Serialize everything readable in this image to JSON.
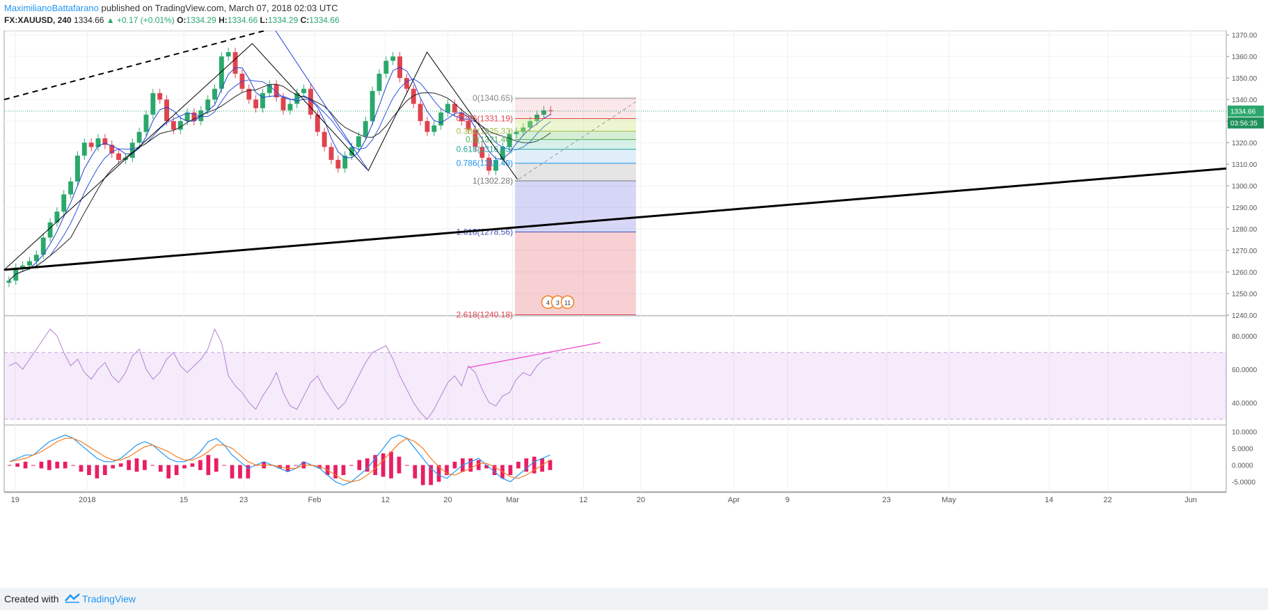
{
  "header": {
    "author": "MaximilianoBattafarano",
    "published": "published on TradingView.com, March 07, 2018 02:03 UTC",
    "symbol": "FX:XAUUSD, 240",
    "price": "1334.66",
    "change": "▲ +0.17 (+0.01%)",
    "o_label": "O:",
    "o_val": "1334.29",
    "h_label": "H:",
    "h_val": "1334.66",
    "l_label": "L:",
    "l_val": "1334.29",
    "c_label": "C:",
    "c_val": "1334.66"
  },
  "footer": {
    "created": "Created with",
    "brand": "TradingView"
  },
  "colors": {
    "up": "#2aa86b",
    "down": "#e0434f",
    "accent": "#2196f3",
    "rsi": "#b57fd0",
    "macd": "#2196f3",
    "signal": "#f57c1f",
    "hist": "#e91e63"
  },
  "chart_data": [
    {
      "type": "candlestick",
      "name": "FX:XAUUSD, 240",
      "xlabel": "",
      "ylabel": "",
      "ylim": [
        1240,
        1372
      ],
      "yticks": [
        "1370.00",
        "1360.00",
        "1350.00",
        "1340.00",
        "1330.00",
        "1320.00",
        "1310.00",
        "1300.00",
        "1290.00",
        "1280.00",
        "1270.00",
        "1260.00",
        "1250.00",
        "1240.00"
      ],
      "xticks": [
        "19",
        "2018",
        "15",
        "23",
        "Feb",
        "12",
        "20",
        "Mar",
        "12",
        "20",
        "Apr",
        "9",
        "23",
        "May",
        "14",
        "22",
        "Jun"
      ],
      "last_price": "1334.66",
      "countdown": "03:56:35",
      "close_path": [
        1256,
        1262,
        1263,
        1265,
        1268,
        1276,
        1283,
        1288,
        1296,
        1302,
        1314,
        1320,
        1318,
        1322,
        1319,
        1315,
        1312,
        1313,
        1320,
        1325,
        1333,
        1343,
        1340,
        1330,
        1326,
        1330,
        1334,
        1330,
        1335,
        1340,
        1345,
        1360,
        1362,
        1352,
        1345,
        1340,
        1336,
        1343,
        1347,
        1341,
        1335,
        1338,
        1343,
        1345,
        1333,
        1325,
        1318,
        1312,
        1308,
        1314,
        1318,
        1323,
        1330,
        1344,
        1352,
        1358,
        1360,
        1350,
        1345,
        1338,
        1330,
        1325,
        1328,
        1334,
        1338,
        1334,
        1330,
        1326,
        1318,
        1313,
        1307,
        1312,
        1318,
        1324,
        1325,
        1327,
        1330,
        1333,
        1335,
        1334.66
      ],
      "fib_levels": [
        {
          "label": "0(1340.65)",
          "value": 1340.65
        },
        {
          "label": "0.236(1331.19)",
          "value": 1331.19
        },
        {
          "label": "0.382(1325.33)",
          "value": 1325.33
        },
        {
          "label": "0.5(1321.46)",
          "value": 1321.46
        },
        {
          "label": "0.618(1316.93)",
          "value": 1316.93
        },
        {
          "label": "0.786(1310.49)",
          "value": 1310.49
        },
        {
          "label": "1(1302.28)",
          "value": 1302.28
        },
        {
          "label": "1.618(1278.56)",
          "value": 1278.56
        },
        {
          "label": "2.618(1240.18)",
          "value": 1240.18
        }
      ],
      "event_markers": [
        "4",
        "3",
        "11"
      ]
    },
    {
      "type": "line",
      "name": "RSI",
      "ylim": [
        27,
        92
      ],
      "yticks": [
        "80.0000",
        "60.0000",
        "40.0000"
      ],
      "band": [
        30,
        70
      ],
      "values": [
        62,
        64,
        60,
        66,
        72,
        78,
        84,
        80,
        70,
        62,
        66,
        58,
        54,
        60,
        64,
        56,
        52,
        58,
        68,
        72,
        60,
        54,
        58,
        66,
        70,
        62,
        58,
        62,
        66,
        72,
        84,
        76,
        56,
        50,
        46,
        40,
        36,
        44,
        50,
        58,
        46,
        38,
        36,
        44,
        52,
        56,
        48,
        42,
        36,
        40,
        48,
        56,
        64,
        70,
        72,
        74,
        66,
        56,
        48,
        40,
        34,
        30,
        36,
        44,
        52,
        56,
        50,
        62,
        58,
        48,
        40,
        38,
        44,
        46,
        54,
        58,
        56,
        62,
        66,
        67
      ]
    },
    {
      "type": "line",
      "name": "MACD",
      "ylim": [
        -8,
        12
      ],
      "yticks": [
        "10.0000",
        "5.0000",
        "0.0000",
        "-5.0000"
      ],
      "macd": [
        1,
        2,
        3,
        3,
        5,
        7,
        8,
        9,
        8,
        6,
        4,
        2,
        1,
        1,
        2,
        4,
        6,
        7,
        6,
        4,
        2,
        1,
        1,
        2,
        4,
        7,
        8,
        6,
        3,
        1,
        -1,
        0,
        1,
        0,
        -1,
        -2,
        -1,
        1,
        0,
        -1,
        -3,
        -5,
        -6,
        -5,
        -3,
        -1,
        2,
        5,
        8,
        9,
        8,
        5,
        2,
        -1,
        -3,
        -4,
        -2,
        0,
        1,
        2,
        0,
        -2,
        -4,
        -5,
        -3,
        -1,
        1,
        2,
        3
      ],
      "signal": [
        1,
        1.5,
        2,
        3,
        4,
        5.5,
        7,
        8,
        8,
        7,
        5.5,
        4,
        2.5,
        1.5,
        1.5,
        2.5,
        4,
        5.5,
        6,
        5,
        4,
        2.5,
        1.5,
        1.5,
        2.5,
        4,
        6,
        6,
        5,
        3,
        1,
        0,
        0,
        0,
        -0.5,
        -1,
        -1,
        0,
        0,
        -0.5,
        -1.5,
        -3,
        -4.5,
        -5,
        -4.5,
        -3,
        -1,
        1.5,
        4,
        6.5,
        8,
        7,
        5,
        2,
        -0.5,
        -2.5,
        -3,
        -2,
        -1,
        0.5,
        0.5,
        -0.5,
        -2,
        -3.5,
        -4,
        -3,
        -1.5,
        0,
        1.5
      ]
    }
  ]
}
